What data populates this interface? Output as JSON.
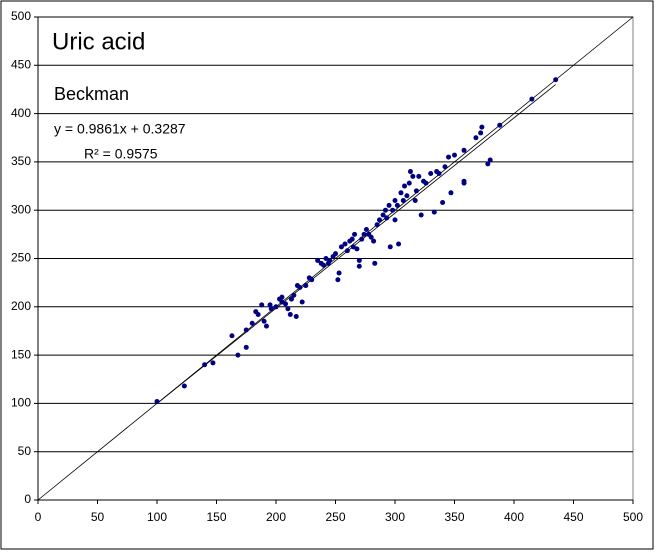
{
  "chart_data": {
    "type": "scatter",
    "title": "Uric acid",
    "subtitle": "Beckman",
    "annotations": [
      "y = 0.9861x + 0.3287",
      "R² = 0.9575"
    ],
    "color": "#000080",
    "grid": true,
    "xlim": [
      0,
      500
    ],
    "ylim": [
      0,
      500
    ],
    "xticks": [
      0,
      50,
      100,
      150,
      200,
      250,
      300,
      350,
      400,
      450,
      500
    ],
    "yticks": [
      0,
      50,
      100,
      150,
      200,
      250,
      300,
      350,
      400,
      450,
      500
    ],
    "x": [
      100,
      123,
      140,
      147,
      163,
      168,
      175,
      175,
      180,
      183,
      185,
      188,
      190,
      192,
      195,
      196,
      200,
      203,
      205,
      205,
      208,
      210,
      212,
      213,
      215,
      217,
      218,
      220,
      222,
      225,
      228,
      230,
      235,
      238,
      240,
      242,
      244,
      245,
      248,
      250,
      252,
      253,
      255,
      258,
      260,
      262,
      264,
      265,
      266,
      268,
      270,
      270,
      272,
      274,
      276,
      278,
      280,
      282,
      283,
      285,
      287,
      290,
      292,
      293,
      295,
      296,
      298,
      300,
      300,
      302,
      303,
      305,
      307,
      308,
      310,
      312,
      313,
      315,
      317,
      318,
      320,
      322,
      324,
      326,
      330,
      333,
      335,
      337,
      340,
      342,
      345,
      347,
      350,
      358,
      358,
      358,
      368,
      372,
      373,
      378,
      380,
      388,
      415,
      435
    ],
    "values": [
      102,
      118,
      140,
      142,
      170,
      150,
      158,
      176,
      183,
      195,
      192,
      202,
      185,
      180,
      202,
      198,
      200,
      208,
      205,
      210,
      203,
      198,
      192,
      208,
      212,
      190,
      222,
      220,
      205,
      222,
      230,
      228,
      248,
      245,
      243,
      250,
      245,
      248,
      252,
      255,
      228,
      235,
      262,
      265,
      258,
      268,
      270,
      262,
      275,
      260,
      248,
      242,
      270,
      275,
      280,
      275,
      272,
      268,
      245,
      285,
      290,
      295,
      300,
      292,
      305,
      262,
      300,
      290,
      310,
      305,
      265,
      318,
      310,
      325,
      315,
      328,
      340,
      335,
      310,
      320,
      335,
      295,
      330,
      328,
      338,
      298,
      340,
      338,
      308,
      345,
      355,
      318,
      357,
      362,
      328,
      330,
      375,
      380,
      386,
      348,
      352,
      388,
      415,
      435
    ]
  }
}
